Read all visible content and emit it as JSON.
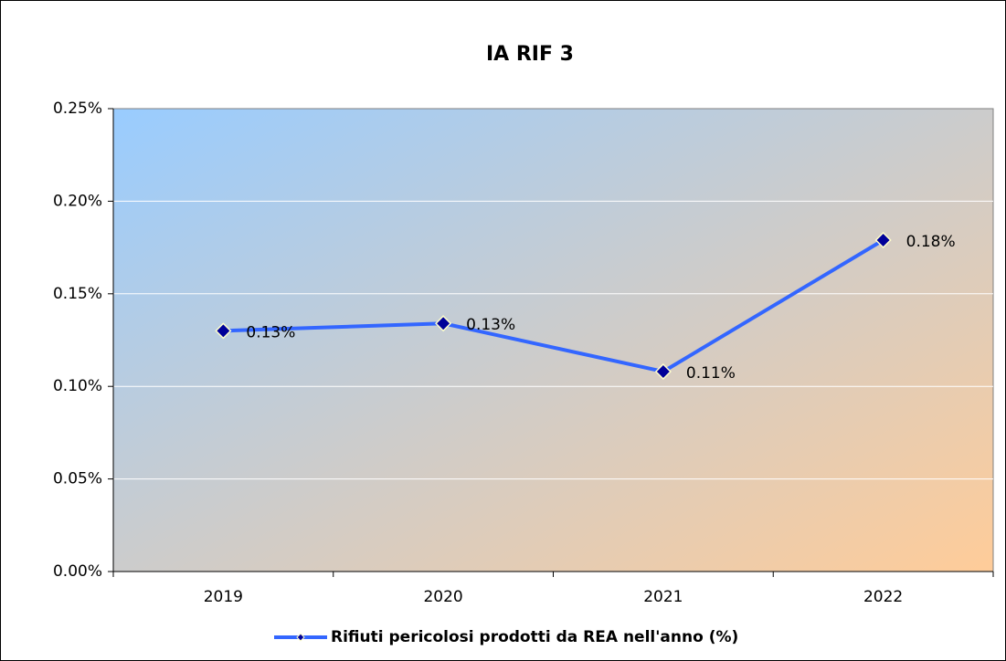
{
  "chart_data": {
    "type": "line",
    "title": "IA RIF 3",
    "categories": [
      "2019",
      "2020",
      "2021",
      "2022"
    ],
    "series": [
      {
        "name": "Rifiuti pericolosi prodotti da REA nell'anno (%)",
        "color": "#3366ff",
        "values": [
          0.13,
          0.134,
          0.108,
          0.179
        ],
        "value_labels": [
          "0.13%",
          "0.13%",
          "0.11%",
          "0.18%"
        ]
      }
    ],
    "ylim": [
      0,
      0.25
    ],
    "yticks": [
      {
        "value": 0,
        "label": "0.00%"
      },
      {
        "value": 0.05,
        "label": "0.05%"
      },
      {
        "value": 0.1,
        "label": "0.10%"
      },
      {
        "value": 0.15,
        "label": "0.15%"
      },
      {
        "value": 0.2,
        "label": "0.20%"
      },
      {
        "value": 0.25,
        "label": "0.25%"
      }
    ],
    "grid": true,
    "legend": "bottom"
  }
}
